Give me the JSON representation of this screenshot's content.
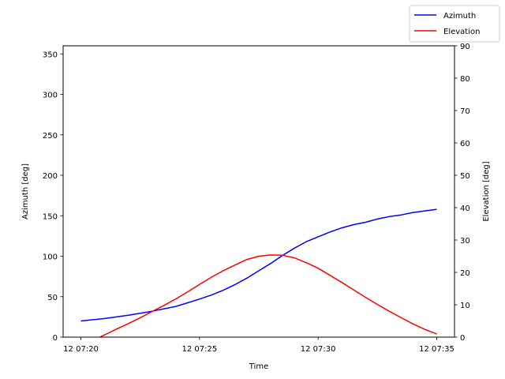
{
  "chart_data": {
    "type": "line",
    "xlabel": "Time",
    "ylabel_left": "Azimuth [deg]",
    "ylabel_right": "Elevation [deg]",
    "x_minutes_range": [
      -0.75,
      15.75
    ],
    "ylim_left": [
      0,
      360
    ],
    "ylim_right": [
      0,
      90
    ],
    "x_ticks": [
      {
        "minute": 0,
        "label": "12 07:20"
      },
      {
        "minute": 5,
        "label": "12 07:25"
      },
      {
        "minute": 10,
        "label": "12 07:30"
      },
      {
        "minute": 15,
        "label": "12 07:35"
      }
    ],
    "y_ticks_left": [
      0,
      50,
      100,
      150,
      200,
      250,
      300,
      350
    ],
    "y_ticks_right": [
      0,
      10,
      20,
      30,
      40,
      50,
      60,
      70,
      80,
      90
    ],
    "grid": false,
    "legend_position": "top-right",
    "series": [
      {
        "name": "Azimuth",
        "axis": "left",
        "color": "#0000ff",
        "minutes": [
          0,
          1,
          2,
          3,
          4,
          5,
          5.5,
          6,
          6.5,
          7,
          7.5,
          8,
          8.5,
          9,
          9.5,
          10,
          10.5,
          11,
          11.5,
          12,
          12.5,
          13,
          13.5,
          14,
          14.5,
          15
        ],
        "values": [
          20,
          23,
          27,
          32,
          38,
          47,
          52,
          58,
          65,
          73,
          82,
          91,
          101,
          110,
          118,
          124,
          130,
          135,
          139,
          142,
          146,
          149,
          151,
          154,
          156,
          158
        ]
      },
      {
        "name": "Elevation",
        "axis": "right",
        "color": "#ff0000",
        "minutes": [
          0.8,
          1.5,
          2,
          2.5,
          3,
          3.5,
          4,
          4.5,
          5,
          5.5,
          6,
          6.5,
          7,
          7.5,
          8,
          8.5,
          9,
          9.5,
          10,
          10.5,
          11,
          11.5,
          12,
          12.5,
          13,
          13.5,
          14,
          14.5,
          15
        ],
        "values": [
          0,
          2.5,
          4.2,
          6,
          7.9,
          9.8,
          11.8,
          14,
          16.3,
          18.5,
          20.5,
          22.3,
          24,
          25,
          25.4,
          25.3,
          24.5,
          23,
          21.3,
          19.1,
          16.9,
          14.6,
          12.3,
          10.1,
          8,
          6,
          4.1,
          2.4,
          1
        ]
      }
    ]
  }
}
